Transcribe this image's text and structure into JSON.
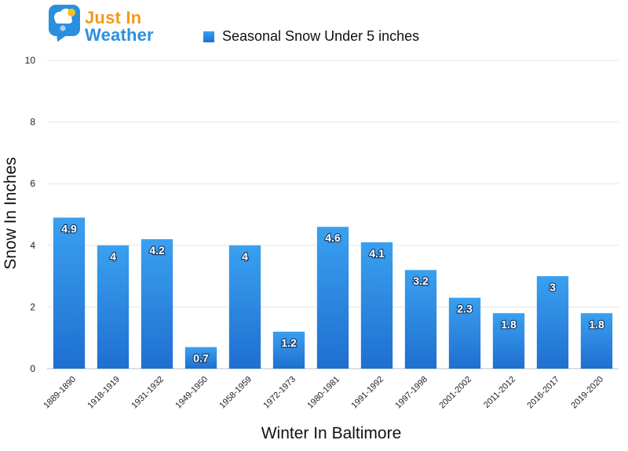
{
  "logo": {
    "line1": "Just In",
    "line2": "Weather"
  },
  "chart_data": {
    "type": "bar",
    "title": "",
    "xlabel": "Winter In Baltimore",
    "ylabel": "Snow In Inches",
    "ylim": [
      0,
      10
    ],
    "yticks": [
      0,
      2,
      4,
      6,
      8,
      10
    ],
    "grid": true,
    "legend_position": "top",
    "categories": [
      "1889-1890",
      "1918-1919",
      "1931-1932",
      "1949-1950",
      "1958-1959",
      "1972-1973",
      "1980-1981",
      "1991-1992",
      "1997-1998",
      "2001-2002",
      "2011-2012",
      "2016-2017",
      "2019-2020"
    ],
    "series": [
      {
        "name": "Seasonal Snow Under 5 inches",
        "values": [
          4.9,
          4,
          4.2,
          0.7,
          4,
          1.2,
          4.6,
          4.1,
          3.2,
          2.3,
          1.8,
          3,
          1.8
        ],
        "labels": [
          "4.9",
          "4",
          "4.2",
          "0.7",
          "4",
          "1.2",
          "4.6",
          "4.1",
          "3.2",
          "2.3",
          "1.8",
          "3",
          "1.8"
        ],
        "color_top": "#3aa0ef",
        "color_bottom": "#1f6fd0"
      }
    ]
  }
}
